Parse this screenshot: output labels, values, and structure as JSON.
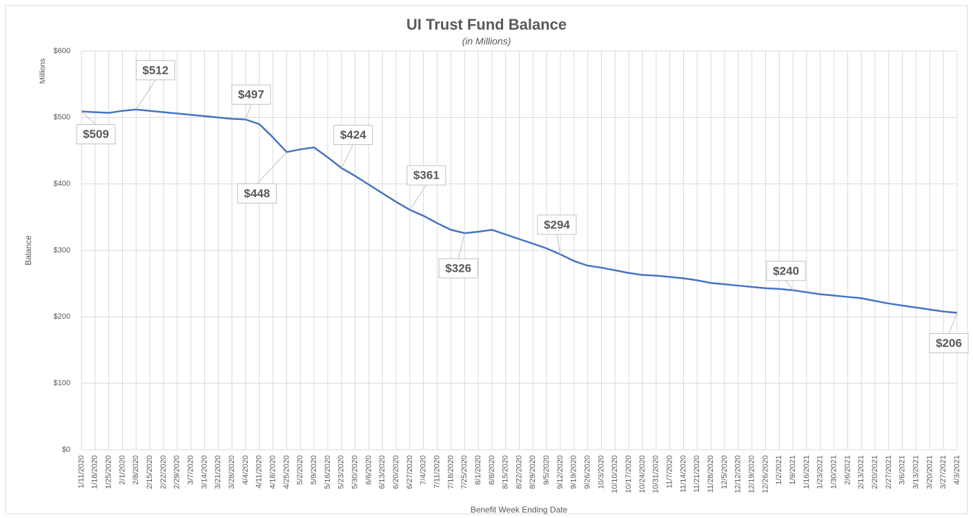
{
  "chart_data": {
    "type": "line",
    "title": "UI Trust Fund Balance",
    "subtitle": "(in Millions)",
    "y_unit_label": "Millions",
    "y_label": "Balance",
    "x_label": "Benefit Week Ending Date",
    "categories": [
      "1/11/2020",
      "1/18/2020",
      "1/25/2020",
      "2/1/2020",
      "2/8/2020",
      "2/15/2020",
      "2/22/2020",
      "2/29/2020",
      "3/7/2020",
      "3/14/2020",
      "3/21/2020",
      "3/28/2020",
      "4/4/2020",
      "4/11/2020",
      "4/18/2020",
      "4/25/2020",
      "5/2/2020",
      "5/9/2020",
      "5/16/2020",
      "5/23/2020",
      "5/30/2020",
      "6/6/2020",
      "6/13/2020",
      "6/20/2020",
      "6/27/2020",
      "7/4/2020",
      "7/11/2020",
      "7/18/2020",
      "7/25/2020",
      "8/1/2020",
      "8/8/2020",
      "8/15/2020",
      "8/22/2020",
      "8/29/2020",
      "9/5/2020",
      "9/12/2020",
      "9/19/2020",
      "9/26/2020",
      "10/3/2020",
      "10/10/2020",
      "10/17/2020",
      "10/24/2020",
      "10/31/2020",
      "11/7/2020",
      "11/14/2020",
      "11/21/2020",
      "11/28/2020",
      "12/5/2020",
      "12/12/2020",
      "12/19/2020",
      "12/26/2020",
      "1/2/2021",
      "1/9/2021",
      "1/16/2021",
      "1/23/2021",
      "1/30/2021",
      "2/6/2021",
      "2/13/2021",
      "2/20/2021",
      "2/27/2021",
      "3/6/2021",
      "3/13/2021",
      "3/20/2021",
      "3/27/2021",
      "4/3/2021"
    ],
    "series": [
      {
        "name": "Balance",
        "color": "#4472c4",
        "values": [
          509,
          508,
          507,
          510,
          512,
          510,
          508,
          506,
          504,
          502,
          500,
          498,
          497,
          490,
          470,
          448,
          452,
          455,
          440,
          424,
          412,
          399,
          386,
          373,
          361,
          352,
          341,
          331,
          326,
          328,
          331,
          324,
          317,
          310,
          303,
          294,
          284,
          277,
          274,
          270,
          266,
          263,
          262,
          260,
          258,
          255,
          251,
          249,
          247,
          245,
          243,
          242,
          240,
          237,
          234,
          232,
          230,
          228,
          224,
          220,
          217,
          214,
          211,
          208,
          206
        ],
        "value_labels": [
          "$509",
          null,
          null,
          null,
          "$512",
          null,
          null,
          null,
          null,
          null,
          null,
          null,
          "$497",
          null,
          null,
          "$448",
          null,
          null,
          null,
          "$424",
          null,
          null,
          null,
          null,
          "$361",
          null,
          null,
          null,
          "$326",
          null,
          null,
          null,
          null,
          null,
          null,
          "$294",
          null,
          null,
          null,
          null,
          null,
          null,
          null,
          null,
          null,
          null,
          null,
          null,
          null,
          null,
          null,
          null,
          "$240",
          null,
          null,
          null,
          null,
          null,
          null,
          null,
          null,
          null,
          null,
          null,
          "$206"
        ]
      }
    ],
    "ylim": [
      0,
      600
    ],
    "yticks": [
      {
        "value": 0,
        "label": "$0"
      },
      {
        "value": 100,
        "label": "$100"
      },
      {
        "value": 200,
        "label": "$200"
      },
      {
        "value": 300,
        "label": "$300"
      },
      {
        "value": 400,
        "label": "$400"
      },
      {
        "value": 500,
        "label": "$500"
      },
      {
        "value": 600,
        "label": "$600"
      }
    ],
    "grid": true
  }
}
